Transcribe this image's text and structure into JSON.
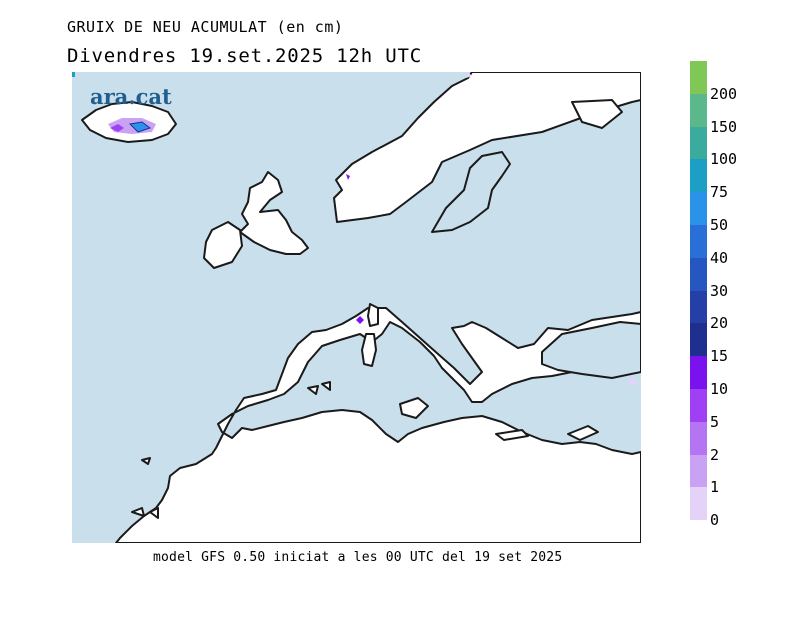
{
  "title": "GRUIX DE NEU ACUMULAT (en cm)",
  "subtitle": "Divendres  19.set.2025 12h UTC",
  "caption": "model GFS 0.50 iniciat a les 00 UTC del 19 set 2025",
  "logo": "ara.cat",
  "colors": {
    "sea": "#c9dfec",
    "land": "#ffffff",
    "coast": "#1a1a1a",
    "logo": "#1f5f8f"
  },
  "legend": {
    "labels": [
      "200",
      "150",
      "100",
      "75",
      "50",
      "40",
      "30",
      "20",
      "15",
      "10",
      "5",
      "2",
      "1",
      "0"
    ],
    "colors": [
      "#7fc855",
      "#5bb88a",
      "#3aab9c",
      "#1b9fc4",
      "#2a92e8",
      "#2a6fd8",
      "#2656c0",
      "#2440a6",
      "#1f2f90",
      "#7a12f0",
      "#a040f4",
      "#b574f2",
      "#caa2f4",
      "#e4d2f8"
    ]
  },
  "snow_cells": [
    {
      "name": "iceland-light",
      "level": "2"
    },
    {
      "name": "iceland-medium",
      "level": "5"
    },
    {
      "name": "iceland-deep",
      "level": "50"
    },
    {
      "name": "norway",
      "level": "10"
    },
    {
      "name": "alps",
      "level": "10"
    },
    {
      "name": "turkey",
      "level": "1"
    },
    {
      "name": "north-edge",
      "level": "1"
    }
  ]
}
